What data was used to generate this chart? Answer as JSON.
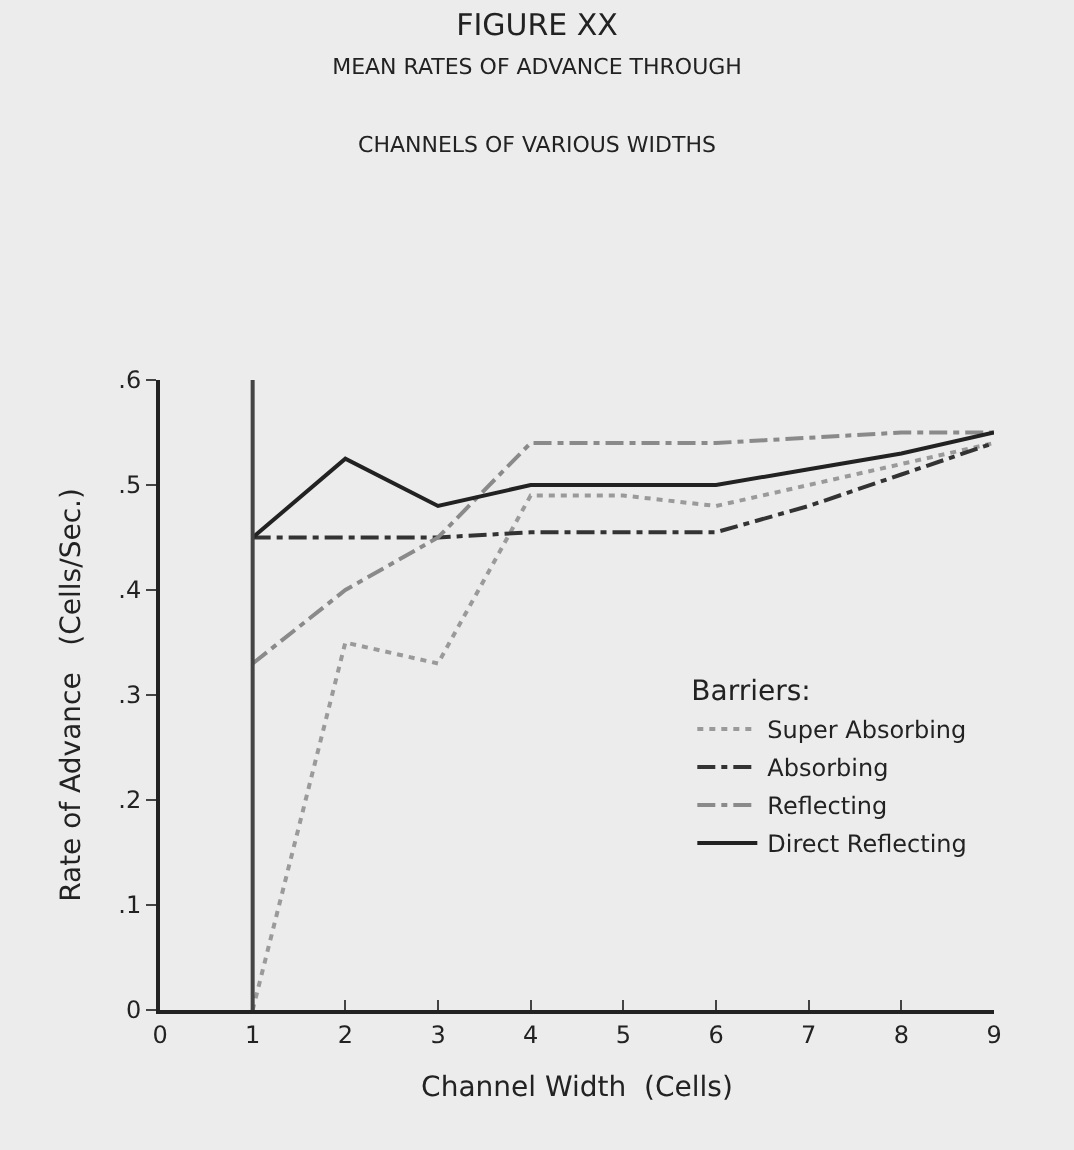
{
  "chart_data": {
    "type": "line",
    "title": "FIGURE XX",
    "subtitle": "MEAN RATES OF ADVANCE THROUGH\nCHANNELS OF VARIOUS WIDTHS",
    "xlabel": "Channel Width  (Cells)",
    "ylabel": "Rate of Advance   (Cells/Sec.)",
    "legend_title": "Barriers:",
    "legend": "right",
    "grid": false,
    "marker": "none",
    "x": [
      1,
      2,
      3,
      4,
      5,
      6,
      7,
      8,
      9
    ],
    "series": [
      {
        "name": "Super Absorbing",
        "color": "#9a9a9a",
        "line_style": "dotted",
        "values": [
          0.0,
          0.35,
          0.33,
          0.49,
          0.49,
          0.48,
          0.5,
          0.52,
          0.54
        ]
      },
      {
        "name": "Absorbing",
        "color": "#333333",
        "line_style": "dashed",
        "values": [
          0.45,
          0.45,
          0.45,
          0.455,
          0.455,
          0.455,
          0.48,
          0.51,
          0.54
        ]
      },
      {
        "name": "Reflecting",
        "color": "#8a8a8a",
        "line_style": "dashed",
        "values": [
          0.33,
          0.4,
          0.45,
          0.54,
          0.54,
          0.54,
          0.545,
          0.55,
          0.55
        ]
      },
      {
        "name": "Direct Reflecting",
        "color": "#222222",
        "line_style": "solid",
        "values": [
          0.45,
          0.525,
          0.48,
          0.5,
          0.5,
          0.5,
          0.515,
          0.53,
          0.55
        ]
      }
    ],
    "xlim": [
      0,
      9
    ],
    "xticks": [
      0,
      1,
      2,
      3,
      4,
      5,
      6,
      7,
      8,
      9
    ],
    "ylim": [
      0,
      0.6
    ],
    "yticks": [
      {
        "value": 0,
        "label": "0"
      },
      {
        "value": 0.1,
        "label": ".1"
      },
      {
        "value": 0.2,
        "label": ".2"
      },
      {
        "value": 0.3,
        "label": ".3"
      },
      {
        "value": 0.4,
        "label": ".4"
      },
      {
        "value": 0.5,
        "label": ".5"
      },
      {
        "value": 0.6,
        "label": ".6"
      }
    ],
    "ref_lines": [
      {
        "axis": "x",
        "value": 1,
        "label": null,
        "color": "#444444",
        "line_style": "solid"
      }
    ]
  }
}
